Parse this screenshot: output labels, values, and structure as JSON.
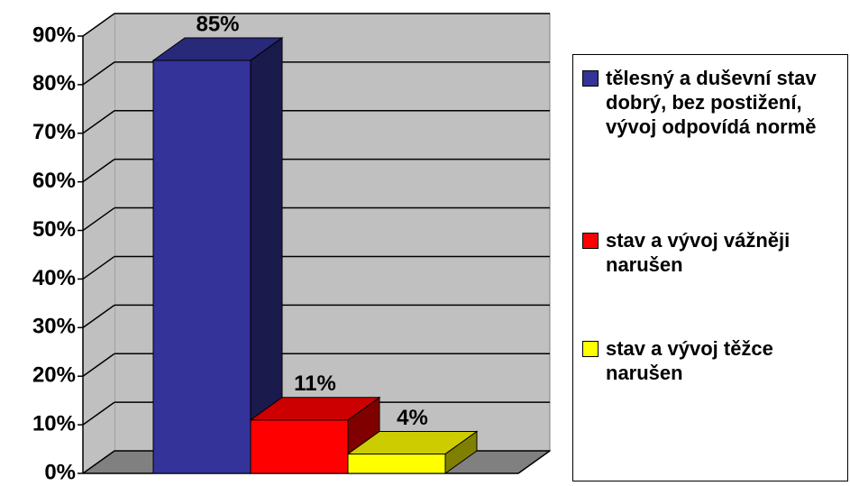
{
  "chart_data": {
    "type": "bar3d",
    "series": [
      {
        "name": "tělesný a duševní stav dobrý, bez postižení, vývoj odpovídá normě",
        "color": "#333399",
        "values": [
          85
        ],
        "value_labels": [
          "85%"
        ]
      },
      {
        "name": "stav a vývoj vážněji narušen",
        "color": "#ff0000",
        "values": [
          11
        ],
        "value_labels": [
          "11%"
        ]
      },
      {
        "name": "stav a vývoj těžce narušen",
        "color": "#ffff00",
        "values": [
          4
        ],
        "value_labels": [
          "4%"
        ]
      }
    ],
    "ylim": [
      0,
      90
    ],
    "yticks": [
      {
        "value": 0,
        "label": "0%"
      },
      {
        "value": 10,
        "label": "10%"
      },
      {
        "value": 20,
        "label": "20%"
      },
      {
        "value": 30,
        "label": "30%"
      },
      {
        "value": 40,
        "label": "40%"
      },
      {
        "value": 50,
        "label": "50%"
      },
      {
        "value": 60,
        "label": "60%"
      },
      {
        "value": 70,
        "label": "70%"
      },
      {
        "value": 80,
        "label": "80%"
      },
      {
        "value": 90,
        "label": "90%"
      }
    ],
    "grid": true,
    "legend": "right"
  }
}
